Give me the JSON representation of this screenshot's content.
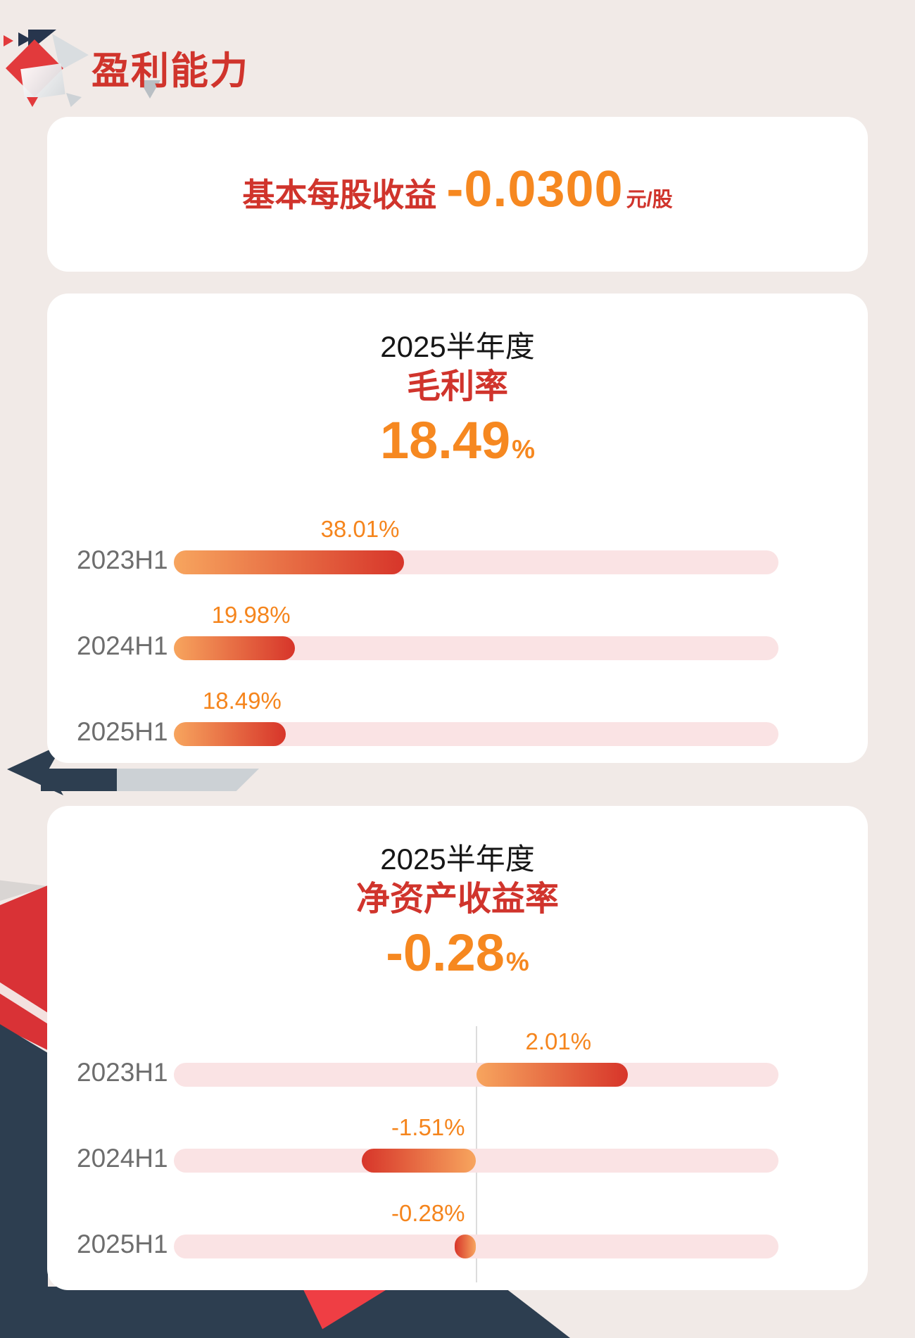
{
  "page": {
    "title": "盈利能力"
  },
  "eps_card": {
    "label": "基本每股收益",
    "value": "-0.0300",
    "unit": "元/股"
  },
  "margin_card": {
    "period": "2025半年度",
    "metric": "毛利率",
    "headline_value": "18.49",
    "headline_unit": "%"
  },
  "roe_card": {
    "period": "2025半年度",
    "metric": "净资产收益率",
    "headline_value": "-0.28",
    "headline_unit": "%"
  },
  "chart_data": [
    {
      "type": "bar",
      "orientation": "horizontal",
      "title": "毛利率",
      "subtitle": "2025半年度",
      "categories": [
        "2023H1",
        "2024H1",
        "2025H1"
      ],
      "values": [
        38.01,
        19.98,
        18.49
      ],
      "value_labels": [
        "38.01%",
        "19.98%",
        "18.49%"
      ],
      "unit": "%",
      "xlim": [
        0,
        100
      ],
      "grid": false,
      "legend": false
    },
    {
      "type": "bar",
      "orientation": "horizontal",
      "title": "净资产收益率",
      "subtitle": "2025半年度",
      "categories": [
        "2023H1",
        "2024H1",
        "2025H1"
      ],
      "values": [
        2.01,
        -1.51,
        -0.28
      ],
      "value_labels": [
        "2.01%",
        "-1.51%",
        "-0.28%"
      ],
      "unit": "%",
      "xlim": [
        -4,
        4
      ],
      "zero_line": true,
      "grid": false,
      "legend": false
    }
  ],
  "colors": {
    "background": "#f1eae7",
    "card": "#ffffff",
    "title_red": "#d0342c",
    "value_orange": "#f68820",
    "label_gray": "#6d6d6d",
    "track_pink": "#fae3e4",
    "bar_gradient_start": "#f7a55e",
    "bar_gradient_end": "#d7352a",
    "navy": "#2d3e50",
    "deco_red": "#e23a3c"
  }
}
